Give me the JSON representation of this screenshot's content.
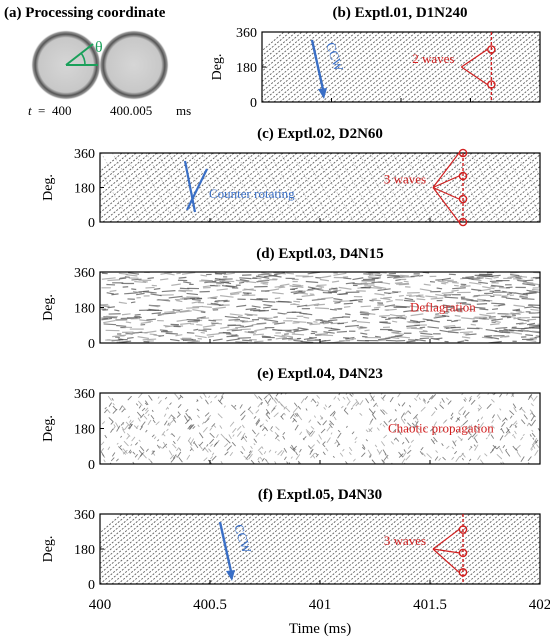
{
  "figure": {
    "panel_a": {
      "title": "(a) Processing coordinate",
      "theta_label": "θ",
      "t_prefix": "t",
      "t_eq": "=",
      "t_value": "400",
      "t_value2": "400.005",
      "unit": "ms"
    },
    "xaxis": {
      "label": "Time (ms)",
      "ticks": [
        "400",
        "400.5",
        "401",
        "401.5",
        "402"
      ]
    },
    "y_label": "Deg.",
    "y_ticks": [
      "0",
      "180",
      "360"
    ]
  },
  "chart_data": [
    {
      "type": "heatmap",
      "title": "(b) Exptl.01, D1N240",
      "xlim": [
        400,
        402
      ],
      "ylim": [
        0,
        360
      ],
      "xlabel": "Time (ms)",
      "ylabel": "Deg.",
      "pattern": "co-rotating",
      "direction_label": "CCW",
      "wave_count_label": "2 waves",
      "marker_time": 401.65,
      "marker_angles": [
        270,
        90
      ]
    },
    {
      "type": "heatmap",
      "title": "(c) Exptl.02, D2N60",
      "xlim": [
        400,
        402
      ],
      "ylim": [
        0,
        360
      ],
      "xlabel": "Time (ms)",
      "ylabel": "Deg.",
      "pattern": "counter-rotating",
      "direction_label": "Counter rotating",
      "wave_count_label": "3 waves",
      "marker_time": 401.65,
      "marker_angles": [
        360,
        240,
        120,
        0
      ]
    },
    {
      "type": "heatmap",
      "title": "(d) Exptl.03, D4N15",
      "xlim": [
        400,
        402
      ],
      "ylim": [
        0,
        360
      ],
      "xlabel": "Time (ms)",
      "ylabel": "Deg.",
      "pattern": "deflagration",
      "annotation": "Deflagration"
    },
    {
      "type": "heatmap",
      "title": "(e) Exptl.04, D4N23",
      "xlim": [
        400,
        402
      ],
      "ylim": [
        0,
        360
      ],
      "xlabel": "Time (ms)",
      "ylabel": "Deg.",
      "pattern": "chaotic",
      "annotation": "Chaotic propagation"
    },
    {
      "type": "heatmap",
      "title": "(f) Exptl.05, D4N30",
      "xlim": [
        400,
        402
      ],
      "ylim": [
        0,
        360
      ],
      "xlabel": "Time (ms)",
      "ylabel": "Deg.",
      "pattern": "co-rotating",
      "direction_label": "CCW",
      "wave_count_label": "3 waves",
      "marker_time": 401.65,
      "marker_angles": [
        280,
        160,
        60
      ]
    }
  ],
  "colors": {
    "direction": "#3a6fc6",
    "waves": "#d11f1f",
    "theta": "#1aa05a",
    "streak": "#444444"
  }
}
